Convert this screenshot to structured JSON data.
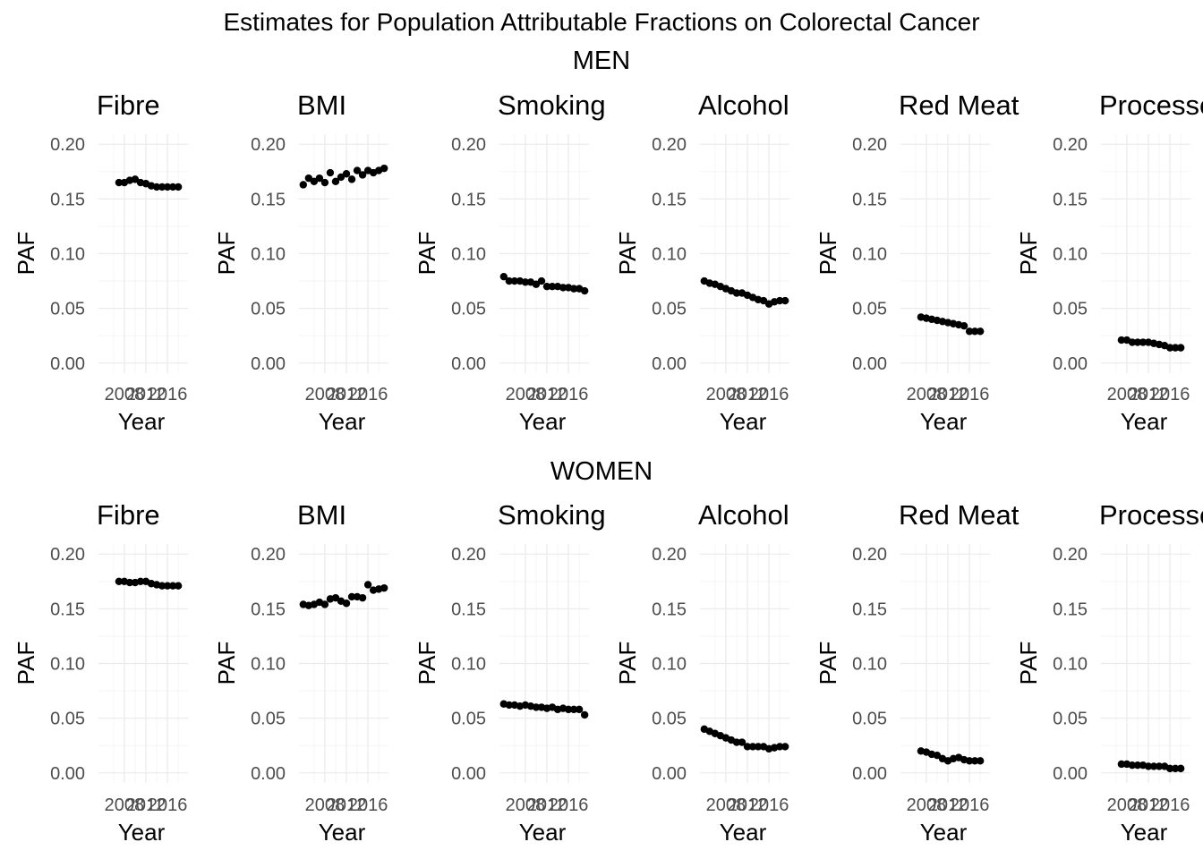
{
  "title": "Estimates for Population Attributable Fractions on Colorectal Cancer",
  "chart_data": [
    {
      "type": "scatter",
      "group": "MEN",
      "xlabel": "Year",
      "ylabel": "PAF",
      "ylim": [
        0,
        0.2
      ],
      "y_ticks": [
        "0.00",
        "0.05",
        "0.10",
        "0.15",
        "0.20"
      ],
      "x_tick_labels": [
        "2008",
        "2012",
        "2016"
      ],
      "grid": true,
      "panels": [
        {
          "title": "Fibre",
          "x": [
            2007,
            2008,
            2009,
            2010,
            2011,
            2012,
            2013,
            2014,
            2015,
            2016,
            2017,
            2018
          ],
          "values": [
            0.165,
            0.165,
            0.167,
            0.168,
            0.165,
            0.164,
            0.162,
            0.161,
            0.161,
            0.161,
            0.161,
            0.161
          ]
        },
        {
          "title": "BMI",
          "x": [
            2004,
            2005,
            2006,
            2007,
            2008,
            2009,
            2010,
            2011,
            2012,
            2013,
            2014,
            2015,
            2016,
            2017,
            2018,
            2019
          ],
          "values": [
            0.163,
            0.169,
            0.166,
            0.169,
            0.165,
            0.174,
            0.166,
            0.17,
            0.173,
            0.168,
            0.176,
            0.172,
            0.176,
            0.174,
            0.176,
            0.178
          ]
        },
        {
          "title": "Smoking",
          "x": [
            2004,
            2005,
            2006,
            2007,
            2008,
            2009,
            2010,
            2011,
            2012,
            2013,
            2014,
            2015,
            2016,
            2017,
            2018,
            2019
          ],
          "values": [
            0.079,
            0.075,
            0.075,
            0.075,
            0.074,
            0.074,
            0.072,
            0.075,
            0.07,
            0.07,
            0.07,
            0.069,
            0.069,
            0.068,
            0.068,
            0.066
          ]
        },
        {
          "title": "Alcohol",
          "x": [
            2004,
            2005,
            2006,
            2007,
            2008,
            2009,
            2010,
            2011,
            2012,
            2013,
            2014,
            2015,
            2016,
            2017,
            2018,
            2019
          ],
          "values": [
            0.075,
            0.073,
            0.072,
            0.07,
            0.068,
            0.066,
            0.064,
            0.064,
            0.062,
            0.06,
            0.058,
            0.057,
            0.054,
            0.056,
            0.057,
            0.057
          ]
        },
        {
          "title": "Red Meat",
          "x": [
            2007,
            2008,
            2009,
            2010,
            2011,
            2012,
            2013,
            2014,
            2015,
            2016,
            2017,
            2018
          ],
          "values": [
            0.042,
            0.041,
            0.04,
            0.039,
            0.038,
            0.037,
            0.036,
            0.035,
            0.034,
            0.029,
            0.029,
            0.029
          ]
        },
        {
          "title": "Processed Meat",
          "x": [
            2007,
            2008,
            2009,
            2010,
            2011,
            2012,
            2013,
            2014,
            2015,
            2016,
            2017,
            2018
          ],
          "values": [
            0.021,
            0.021,
            0.019,
            0.019,
            0.019,
            0.019,
            0.018,
            0.017,
            0.016,
            0.014,
            0.014,
            0.014
          ]
        }
      ]
    },
    {
      "type": "scatter",
      "group": "WOMEN",
      "xlabel": "Year",
      "ylabel": "PAF",
      "ylim": [
        0,
        0.2
      ],
      "y_ticks": [
        "0.00",
        "0.05",
        "0.10",
        "0.15",
        "0.20"
      ],
      "x_tick_labels": [
        "2008",
        "2012",
        "2016"
      ],
      "grid": true,
      "panels": [
        {
          "title": "Fibre",
          "x": [
            2007,
            2008,
            2009,
            2010,
            2011,
            2012,
            2013,
            2014,
            2015,
            2016,
            2017,
            2018
          ],
          "values": [
            0.175,
            0.175,
            0.174,
            0.174,
            0.175,
            0.175,
            0.173,
            0.172,
            0.171,
            0.171,
            0.171,
            0.171
          ]
        },
        {
          "title": "BMI",
          "x": [
            2004,
            2005,
            2006,
            2007,
            2008,
            2009,
            2010,
            2011,
            2012,
            2013,
            2014,
            2015,
            2016,
            2017,
            2018,
            2019
          ],
          "values": [
            0.154,
            0.153,
            0.154,
            0.156,
            0.154,
            0.159,
            0.16,
            0.157,
            0.155,
            0.161,
            0.161,
            0.16,
            0.172,
            0.167,
            0.168,
            0.169
          ]
        },
        {
          "title": "Smoking",
          "x": [
            2004,
            2005,
            2006,
            2007,
            2008,
            2009,
            2010,
            2011,
            2012,
            2013,
            2014,
            2015,
            2016,
            2017,
            2018,
            2019
          ],
          "values": [
            0.063,
            0.062,
            0.062,
            0.061,
            0.062,
            0.061,
            0.06,
            0.06,
            0.059,
            0.06,
            0.058,
            0.059,
            0.058,
            0.058,
            0.058,
            0.053
          ]
        },
        {
          "title": "Alcohol",
          "x": [
            2004,
            2005,
            2006,
            2007,
            2008,
            2009,
            2010,
            2011,
            2012,
            2013,
            2014,
            2015,
            2016,
            2017,
            2018,
            2019
          ],
          "values": [
            0.04,
            0.038,
            0.036,
            0.034,
            0.032,
            0.03,
            0.028,
            0.028,
            0.024,
            0.024,
            0.024,
            0.024,
            0.022,
            0.023,
            0.024,
            0.024
          ]
        },
        {
          "title": "Red Meat",
          "x": [
            2007,
            2008,
            2009,
            2010,
            2011,
            2012,
            2013,
            2014,
            2015,
            2016,
            2017,
            2018
          ],
          "values": [
            0.02,
            0.019,
            0.017,
            0.016,
            0.013,
            0.011,
            0.013,
            0.014,
            0.012,
            0.011,
            0.011,
            0.011
          ]
        },
        {
          "title": "Processed Meat",
          "x": [
            2007,
            2008,
            2009,
            2010,
            2011,
            2012,
            2013,
            2014,
            2015,
            2016,
            2017,
            2018
          ],
          "values": [
            0.008,
            0.008,
            0.007,
            0.007,
            0.007,
            0.006,
            0.006,
            0.006,
            0.006,
            0.004,
            0.004,
            0.004
          ]
        }
      ]
    }
  ]
}
